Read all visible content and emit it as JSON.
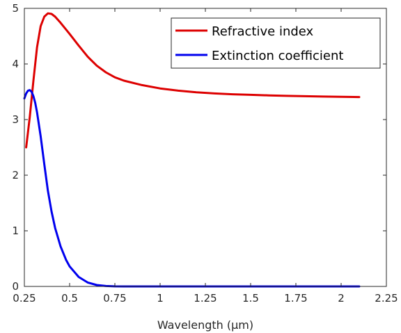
{
  "chart_data": {
    "type": "line",
    "title": "",
    "xlabel": "Wavelength (μm)",
    "ylabel": "",
    "xlim": [
      0.25,
      2.25
    ],
    "ylim": [
      0,
      5
    ],
    "xticks": [
      0.25,
      0.5,
      0.75,
      1,
      1.25,
      1.5,
      1.75,
      2,
      2.25
    ],
    "xtick_labels": [
      "0.25",
      "0.5",
      "0.75",
      "1",
      "1.25",
      "1.5",
      "1.75",
      "2",
      "2.25"
    ],
    "yticks": [
      0,
      1,
      2,
      3,
      4,
      5
    ],
    "ytick_labels": [
      "0",
      "1",
      "2",
      "3",
      "4",
      "5"
    ],
    "grid": false,
    "legend_position": "top-right",
    "series": [
      {
        "name": "Refractive index",
        "color": "#dd0000",
        "x": [
          0.26,
          0.28,
          0.3,
          0.32,
          0.34,
          0.36,
          0.38,
          0.4,
          0.42,
          0.45,
          0.5,
          0.55,
          0.6,
          0.65,
          0.7,
          0.75,
          0.8,
          0.9,
          1.0,
          1.1,
          1.2,
          1.3,
          1.4,
          1.5,
          1.6,
          1.7,
          1.8,
          1.9,
          2.0,
          2.1
        ],
        "y": [
          2.5,
          3.05,
          3.7,
          4.3,
          4.68,
          4.85,
          4.91,
          4.9,
          4.85,
          4.74,
          4.54,
          4.33,
          4.13,
          3.97,
          3.85,
          3.76,
          3.7,
          3.62,
          3.56,
          3.52,
          3.49,
          3.47,
          3.455,
          3.445,
          3.435,
          3.427,
          3.42,
          3.414,
          3.41,
          3.405
        ]
      },
      {
        "name": "Extinction coefficient",
        "color": "#0000ee",
        "x": [
          0.25,
          0.26,
          0.27,
          0.28,
          0.29,
          0.3,
          0.31,
          0.32,
          0.34,
          0.36,
          0.38,
          0.4,
          0.42,
          0.45,
          0.48,
          0.5,
          0.55,
          0.6,
          0.65,
          0.7,
          0.75,
          0.8,
          0.9,
          1.0,
          1.2,
          1.5,
          1.8,
          2.1
        ],
        "y": [
          3.38,
          3.47,
          3.52,
          3.53,
          3.5,
          3.42,
          3.3,
          3.13,
          2.7,
          2.2,
          1.72,
          1.35,
          1.05,
          0.72,
          0.48,
          0.36,
          0.17,
          0.07,
          0.025,
          0.008,
          0.002,
          0.0,
          0.0,
          0.0,
          0.0,
          0.0,
          0.0,
          0.0
        ]
      }
    ]
  }
}
